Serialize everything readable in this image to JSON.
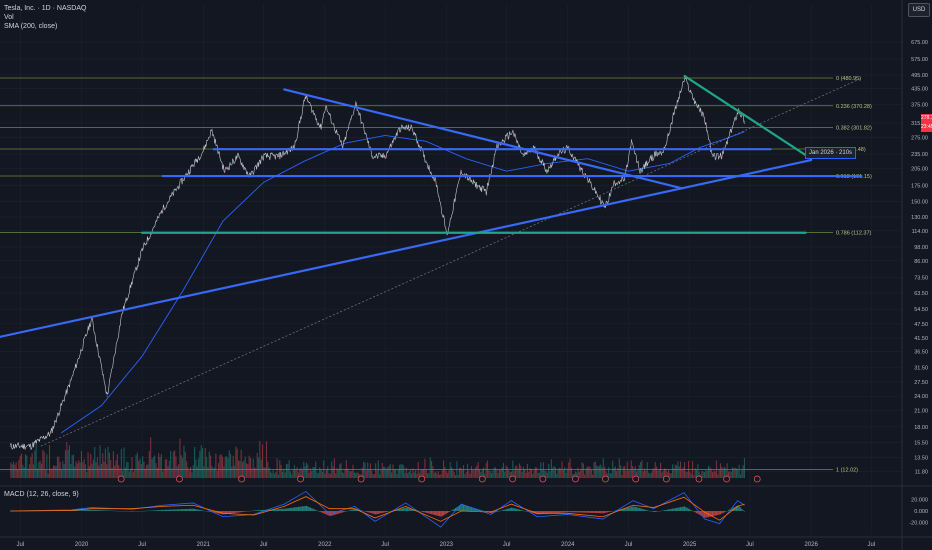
{
  "header": {
    "symbol_line": "Tesla, Inc. · 1D · NASDAQ",
    "volume_label": "Vol",
    "sma_label": "SMA (200, close)",
    "currency_button": "USD",
    "macd_label": "MACD (12, 26, close, 9)"
  },
  "price_tags": {
    "last_price": "278.19",
    "countdown": "23:45"
  },
  "tooltip": {
    "text": "Jan 2026 · 210s"
  },
  "colors": {
    "background": "#131722",
    "grid": "#1e222d",
    "trendline": "#3968f6",
    "downtrend": "#1fa68a",
    "fib_line": "#6c8b3c",
    "up_candle": "#26a69a",
    "down_candle": "#ef5350",
    "sma": "#2962ff",
    "macd_line": "#2962ff",
    "signal_line": "#ff6d00"
  },
  "chart_data": {
    "type": "line",
    "scale": "log",
    "ylim": [
      10.5,
      800
    ],
    "y_ticks": [
      "675.00",
      "575.00",
      "495.00",
      "435.00",
      "375.00",
      "315.00",
      "275.00",
      "235.00",
      "205.00",
      "175.00",
      "150.00",
      "130.00",
      "114.00",
      "98.00",
      "86.00",
      "73.50",
      "63.50",
      "54.50",
      "47.50",
      "41.50",
      "36.50",
      "31.50",
      "27.50",
      "24.00",
      "21.00",
      "18.00",
      "15.50",
      "13.50",
      "11.80"
    ],
    "x_ticks": [
      "Jul",
      "2020",
      "Jul",
      "2021",
      "Jul",
      "2022",
      "Jul",
      "2023",
      "Jul",
      "2024",
      "Jul",
      "2025",
      "Jul",
      "2026",
      "Jul"
    ],
    "x_tick_dates": [
      "2019-07-01",
      "2020-01-01",
      "2020-07-01",
      "2021-01-01",
      "2021-07-01",
      "2022-01-01",
      "2022-07-01",
      "2023-01-01",
      "2023-07-01",
      "2024-01-01",
      "2024-07-01",
      "2025-01-01",
      "2025-07-01",
      "2026-01-01",
      "2026-07-01"
    ],
    "x_range": [
      "2019-05-01",
      "2026-10-01"
    ],
    "price_series": {
      "name": "",
      "dates": [
        "2019-06-01",
        "2019-08-01",
        "2019-10-01",
        "2019-12-01",
        "2020-02-01",
        "2020-03-18",
        "2020-05-01",
        "2020-07-01",
        "2020-09-01",
        "2020-11-01",
        "2021-01-01",
        "2021-01-26",
        "2021-03-05",
        "2021-04-15",
        "2021-05-20",
        "2021-07-01",
        "2021-08-15",
        "2021-10-01",
        "2021-11-04",
        "2021-12-20",
        "2022-01-03",
        "2022-02-24",
        "2022-04-04",
        "2022-05-24",
        "2022-07-01",
        "2022-08-15",
        "2022-09-20",
        "2022-11-01",
        "2022-12-01",
        "2023-01-03",
        "2023-02-15",
        "2023-03-20",
        "2023-05-01",
        "2023-06-01",
        "2023-07-19",
        "2023-08-20",
        "2023-09-20",
        "2023-10-31",
        "2023-12-01",
        "2024-01-02",
        "2024-02-20",
        "2024-04-22",
        "2024-05-20",
        "2024-06-20",
        "2024-07-10",
        "2024-08-05",
        "2024-09-20",
        "2024-10-10",
        "2024-10-25",
        "2024-11-11",
        "2024-12-17",
        "2025-01-15",
        "2025-02-15",
        "2025-03-10",
        "2025-04-08",
        "2025-05-01",
        "2025-05-28",
        "2025-06-15"
      ],
      "values": [
        15,
        15,
        17,
        28,
        50,
        24,
        52,
        95,
        140,
        185,
        243,
        295,
        200,
        230,
        190,
        230,
        230,
        250,
        407,
        300,
        370,
        250,
        380,
        230,
        230,
        300,
        300,
        220,
        180,
        110,
        200,
        180,
        165,
        250,
        291,
        230,
        250,
        200,
        235,
        248,
        195,
        142,
        180,
        185,
        263,
        200,
        235,
        238,
        265,
        330,
        480,
        390,
        330,
        230,
        230,
        280,
        358,
        320
      ]
    },
    "sma_series": {
      "name": "SMA (200, close)",
      "dates": [
        "2019-11-01",
        "2020-03-01",
        "2020-07-01",
        "2020-11-01",
        "2021-03-01",
        "2021-07-01",
        "2021-11-01",
        "2022-03-01",
        "2022-07-01",
        "2022-11-01",
        "2023-03-01",
        "2023-07-01",
        "2023-11-01",
        "2024-03-01",
        "2024-07-01",
        "2024-11-01",
        "2025-02-01",
        "2025-05-01",
        "2025-06-15"
      ],
      "values": [
        17,
        22,
        35,
        65,
        125,
        180,
        220,
        260,
        280,
        265,
        225,
        200,
        215,
        225,
        200,
        215,
        250,
        275,
        290
      ]
    },
    "fibonacci": [
      {
        "level": "0",
        "price": 480.95,
        "label": "0 (480.95)"
      },
      {
        "level": "0.236",
        "price": 370.28,
        "label": "0.236 (370.28)"
      },
      {
        "level": "0.382",
        "price": 301.82,
        "label": "0.382 (301.82)"
      },
      {
        "level": "0.5",
        "price": 246.48,
        "label": "0.5 (246.48)"
      },
      {
        "level": "0.618",
        "price": 191.15,
        "label": "0.618 (191.15)"
      },
      {
        "level": "0.786",
        "price": 112.37,
        "label": "0.786 (112.37)"
      },
      {
        "level": "1",
        "price": 12.02,
        "label": "1 (12.02)"
      }
    ],
    "trendlines": [
      {
        "name": "long-uptrend",
        "start": [
          "2019-05-01",
          42
        ],
        "end": [
          "2026-01-01",
          222
        ]
      },
      {
        "name": "falling-resistance",
        "start": [
          "2021-09-01",
          432
        ],
        "end": [
          "2024-12-10",
          170
        ]
      },
      {
        "name": "horizontal-support-246",
        "start": [
          "2021-02-01",
          246
        ],
        "end": [
          "2025-09-01",
          246
        ]
      },
      {
        "name": "horizontal-support-191",
        "start": [
          "2020-09-01",
          191
        ],
        "end": [
          "2026-06-01",
          191
        ]
      },
      {
        "name": "horizontal-support-112",
        "start": [
          "2020-07-01",
          112
        ],
        "end": [
          "2025-12-15",
          112
        ]
      },
      {
        "name": "descending-top",
        "start": [
          "2024-12-17",
          490
        ],
        "end": [
          "2026-01-01",
          225
        ]
      }
    ],
    "dotted_projection": {
      "start": [
        "2019-09-01",
        15
      ],
      "end": [
        "2026-06-01",
        480
      ]
    },
    "earnings_markers": [
      "2020-04-29",
      "2020-10-21",
      "2021-04-26",
      "2021-10-20",
      "2022-04-20",
      "2022-10-19",
      "2023-04-19",
      "2023-07-19",
      "2023-10-18",
      "2024-01-24",
      "2024-04-23",
      "2024-07-23",
      "2024-10-23",
      "2025-01-29",
      "2025-04-22",
      "2025-07-23"
    ],
    "macd": {
      "name": "MACD (12, 26, close, 9)",
      "y_ticks": [
        "20.000",
        "0.000",
        "-20.000"
      ],
      "ylim": [
        -40,
        40
      ],
      "dates": [
        "2019-06-01",
        "2019-12-01",
        "2020-02-01",
        "2020-06-01",
        "2020-09-01",
        "2020-12-01",
        "2021-03-01",
        "2021-06-01",
        "2021-09-01",
        "2021-11-05",
        "2022-01-15",
        "2022-04-01",
        "2022-06-01",
        "2022-09-01",
        "2022-12-15",
        "2023-02-15",
        "2023-05-15",
        "2023-07-15",
        "2023-10-01",
        "2024-01-01",
        "2024-04-15",
        "2024-07-15",
        "2024-09-15",
        "2024-12-15",
        "2025-02-15",
        "2025-04-01",
        "2025-05-25",
        "2025-06-15"
      ],
      "macd_values": [
        0,
        2,
        6,
        3,
        10,
        14,
        -10,
        -6,
        12,
        34,
        -5,
        8,
        -18,
        14,
        -28,
        12,
        -6,
        18,
        -10,
        -6,
        -14,
        18,
        4,
        32,
        -14,
        -22,
        18,
        10
      ],
      "signal_values": [
        0,
        1,
        4,
        4,
        8,
        10,
        -4,
        -7,
        8,
        25,
        4,
        4,
        -12,
        8,
        -18,
        0,
        -2,
        12,
        -4,
        -4,
        -10,
        10,
        6,
        24,
        -2,
        -16,
        8,
        12
      ]
    }
  }
}
